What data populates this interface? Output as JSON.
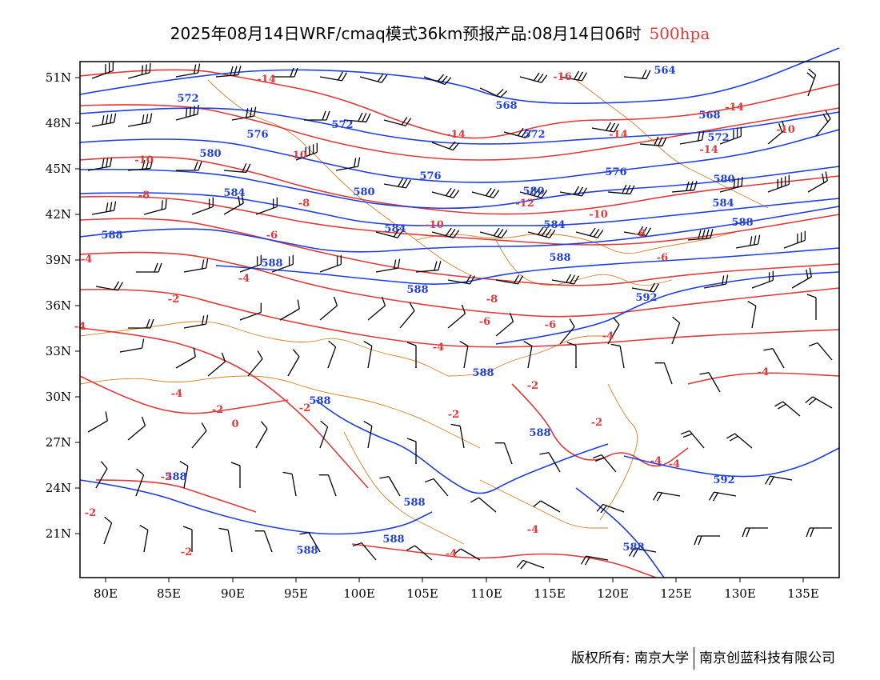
{
  "header": {
    "title": "2025年08月14日WRF/cmaq模式36km预报产品:08月14日06时",
    "level": "500hpa"
  },
  "axes": {
    "lat_labels": [
      "51N",
      "48N",
      "45N",
      "42N",
      "39N",
      "36N",
      "33N",
      "30N",
      "27N",
      "24N",
      "21N"
    ],
    "lon_labels": [
      "80E",
      "85E",
      "90E",
      "95E",
      "100E",
      "105E",
      "110E",
      "115E",
      "120E",
      "125E",
      "130E",
      "135E"
    ]
  },
  "legend_colors": {
    "height_contour": "#1f3fe0",
    "temperature_contour": "#e03a3a",
    "boundaries": "#d9822b",
    "wind_barbs": "#000000"
  },
  "contour_labels": {
    "height": [
      "564",
      "568",
      "572",
      "576",
      "580",
      "584",
      "588",
      "592"
    ],
    "temperature": [
      "-16",
      "-14",
      "-12",
      "-10",
      "-8",
      "-6",
      "-4",
      "-2",
      "0"
    ]
  },
  "footer": {
    "copyright": "版权所有: 南京大学",
    "company": "南京创蓝科技有限公司"
  }
}
